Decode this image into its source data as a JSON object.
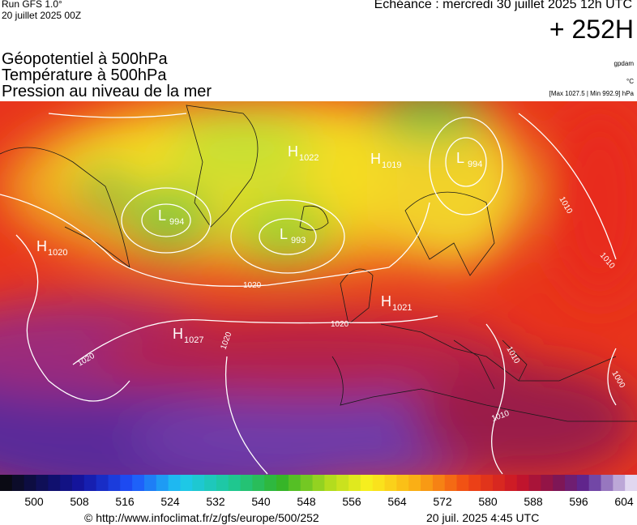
{
  "header": {
    "run": "Run GFS 1.0°",
    "date": "20 juillet 2025 00Z",
    "echeance": "Echéance : mercredi 30 juillet 2025 12h UTC",
    "lead": "+ 252H"
  },
  "layers": [
    "Géopotentiel à 500hPa",
    "Température à 500hPa",
    "Pression au niveau de la mer"
  ],
  "units": [
    "gpdam",
    "°C",
    "[Max 1027.5 | Min 992.9] hPa"
  ],
  "systems": [
    {
      "letter": "H",
      "value": "1020"
    },
    {
      "letter": "L",
      "value": "994"
    },
    {
      "letter": "L",
      "value": "993"
    },
    {
      "letter": "H",
      "value": "1022"
    },
    {
      "letter": "H",
      "value": "1019"
    },
    {
      "letter": "L",
      "value": "994"
    },
    {
      "letter": "H",
      "value": "1021"
    },
    {
      "letter": "H",
      "value": "1027"
    }
  ],
  "isobar_labels": [
    "1020",
    "1020",
    "1020",
    "1020",
    "1010",
    "1010",
    "1010",
    "1010",
    "1000"
  ],
  "colorbar": {
    "labels": [
      500,
      508,
      516,
      524,
      532,
      540,
      548,
      556,
      564,
      572,
      580,
      588,
      596,
      604
    ]
  },
  "footer": {
    "url": "© http://www.infoclimat.fr/z/gfs/europe/500/252",
    "timestamp": "20 juil. 2025  4:45 UTC"
  }
}
